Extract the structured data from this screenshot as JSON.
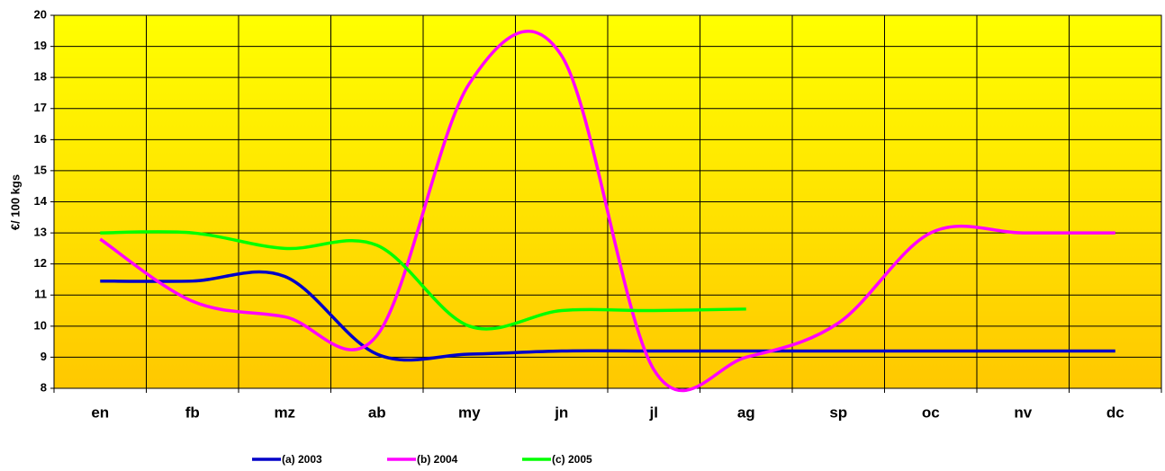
{
  "chart_data": {
    "type": "line",
    "y_label": "€/ 100 kgs",
    "categories": [
      "en",
      "fb",
      "mz",
      "ab",
      "my",
      "jn",
      "jl",
      "ag",
      "sp",
      "oc",
      "nv",
      "dc"
    ],
    "series": [
      {
        "name": "(a) 2003",
        "color": "#0000c8",
        "values": [
          11.45,
          11.45,
          11.6,
          9.1,
          9.1,
          9.2,
          9.2,
          9.2,
          9.2,
          9.2,
          9.2,
          9.2
        ]
      },
      {
        "name": "(b) 2004",
        "color": "#ff00ff",
        "values": [
          12.8,
          10.8,
          10.3,
          9.7,
          17.8,
          18.7,
          8.6,
          9.0,
          10.1,
          13.0,
          13.0,
          13.0
        ]
      },
      {
        "name": "(c) 2005",
        "color": "#00ff00",
        "values": [
          13.0,
          13.0,
          12.5,
          12.6,
          10.0,
          10.5,
          10.5,
          10.55,
          null,
          null,
          null,
          null
        ]
      }
    ],
    "ylim": [
      8,
      20
    ],
    "yticks": [
      8,
      9,
      10,
      11,
      12,
      13,
      14,
      15,
      16,
      17,
      18,
      19,
      20
    ],
    "grid": true
  }
}
